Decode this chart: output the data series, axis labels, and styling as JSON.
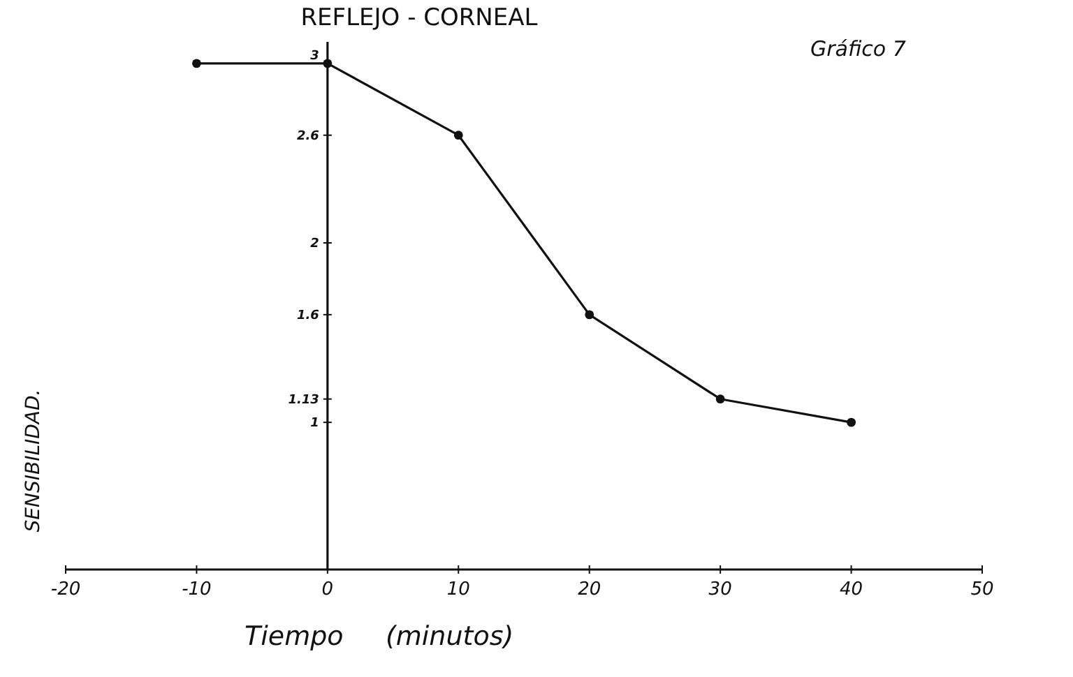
{
  "chart_data": {
    "type": "line",
    "title": "REFLEJO - CORNEAL",
    "xlabel": "Tiempo     (minutos)",
    "ylabel": "SENSIBILIDAD.",
    "annotations": [
      "Gráfico 7"
    ],
    "x": [
      -10,
      0,
      10,
      20,
      30,
      40
    ],
    "series": [
      {
        "color": "#111111",
        "values": [
          3,
          3,
          2.6,
          1.6,
          1.13,
          1.0
        ]
      }
    ],
    "xlim": [
      -20,
      50
    ],
    "xticks": [
      -20,
      -10,
      0,
      10,
      20,
      30,
      40,
      50
    ],
    "ylim": [
      0.18,
      3.12
    ],
    "yticks": [
      1,
      1.13,
      1.6,
      2,
      2.6,
      3
    ],
    "marker": "circle",
    "line_style": "solid"
  }
}
